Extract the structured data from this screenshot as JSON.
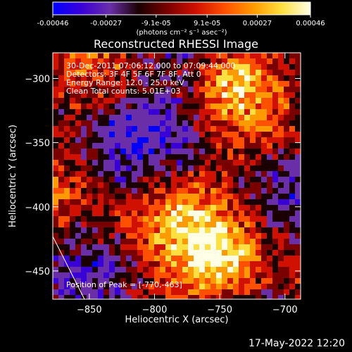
{
  "colorbar": {
    "ticks": [
      "-0.00046",
      "-0.00027",
      "-9.1e-05",
      "9.1e-05",
      "0.00027",
      "0.00046"
    ],
    "tick_values": [
      -0.00046,
      -0.00027,
      -9.1e-05,
      9.1e-05,
      0.00027,
      0.00046
    ],
    "range": [
      -0.00046,
      0.00046
    ],
    "units": "(photons cm⁻² s⁻¹ asec⁻²)",
    "colors": [
      "#0000ff",
      "#3a00d8",
      "#6a2fa8",
      "#1a0000",
      "#7a0000",
      "#d01000",
      "#ff5000",
      "#ff9a00",
      "#ffe040",
      "#ffffe8"
    ]
  },
  "chart_data": {
    "type": "heatmap",
    "title": "Reconstructed RHESSI Image",
    "xlabel": "Heliocentric X (arcsec)",
    "ylabel": "Heliocentric Y (arcsec)",
    "xlim": [
      -878,
      -688
    ],
    "ylim": [
      -472,
      -280
    ],
    "xticks": [
      -850,
      -800,
      -750,
      -700
    ],
    "yticks": [
      -300,
      -350,
      -400,
      -450
    ],
    "info": [
      "30-Dec-2011 07:06:12.000 to 07:09:44.000",
      "Detectors: 3F 4F 5F 6F 7F 8F, Att 0",
      "Energy Range: 12.0 - 25.0 keV",
      "Clean     Total counts: 5.01E+03"
    ],
    "peak_label": "Position of Peak = [-770,-463]",
    "peak": [
      -770,
      -463
    ],
    "limb_visible": true
  },
  "footer": {
    "timestamp": "17-May-2022 12:20"
  }
}
